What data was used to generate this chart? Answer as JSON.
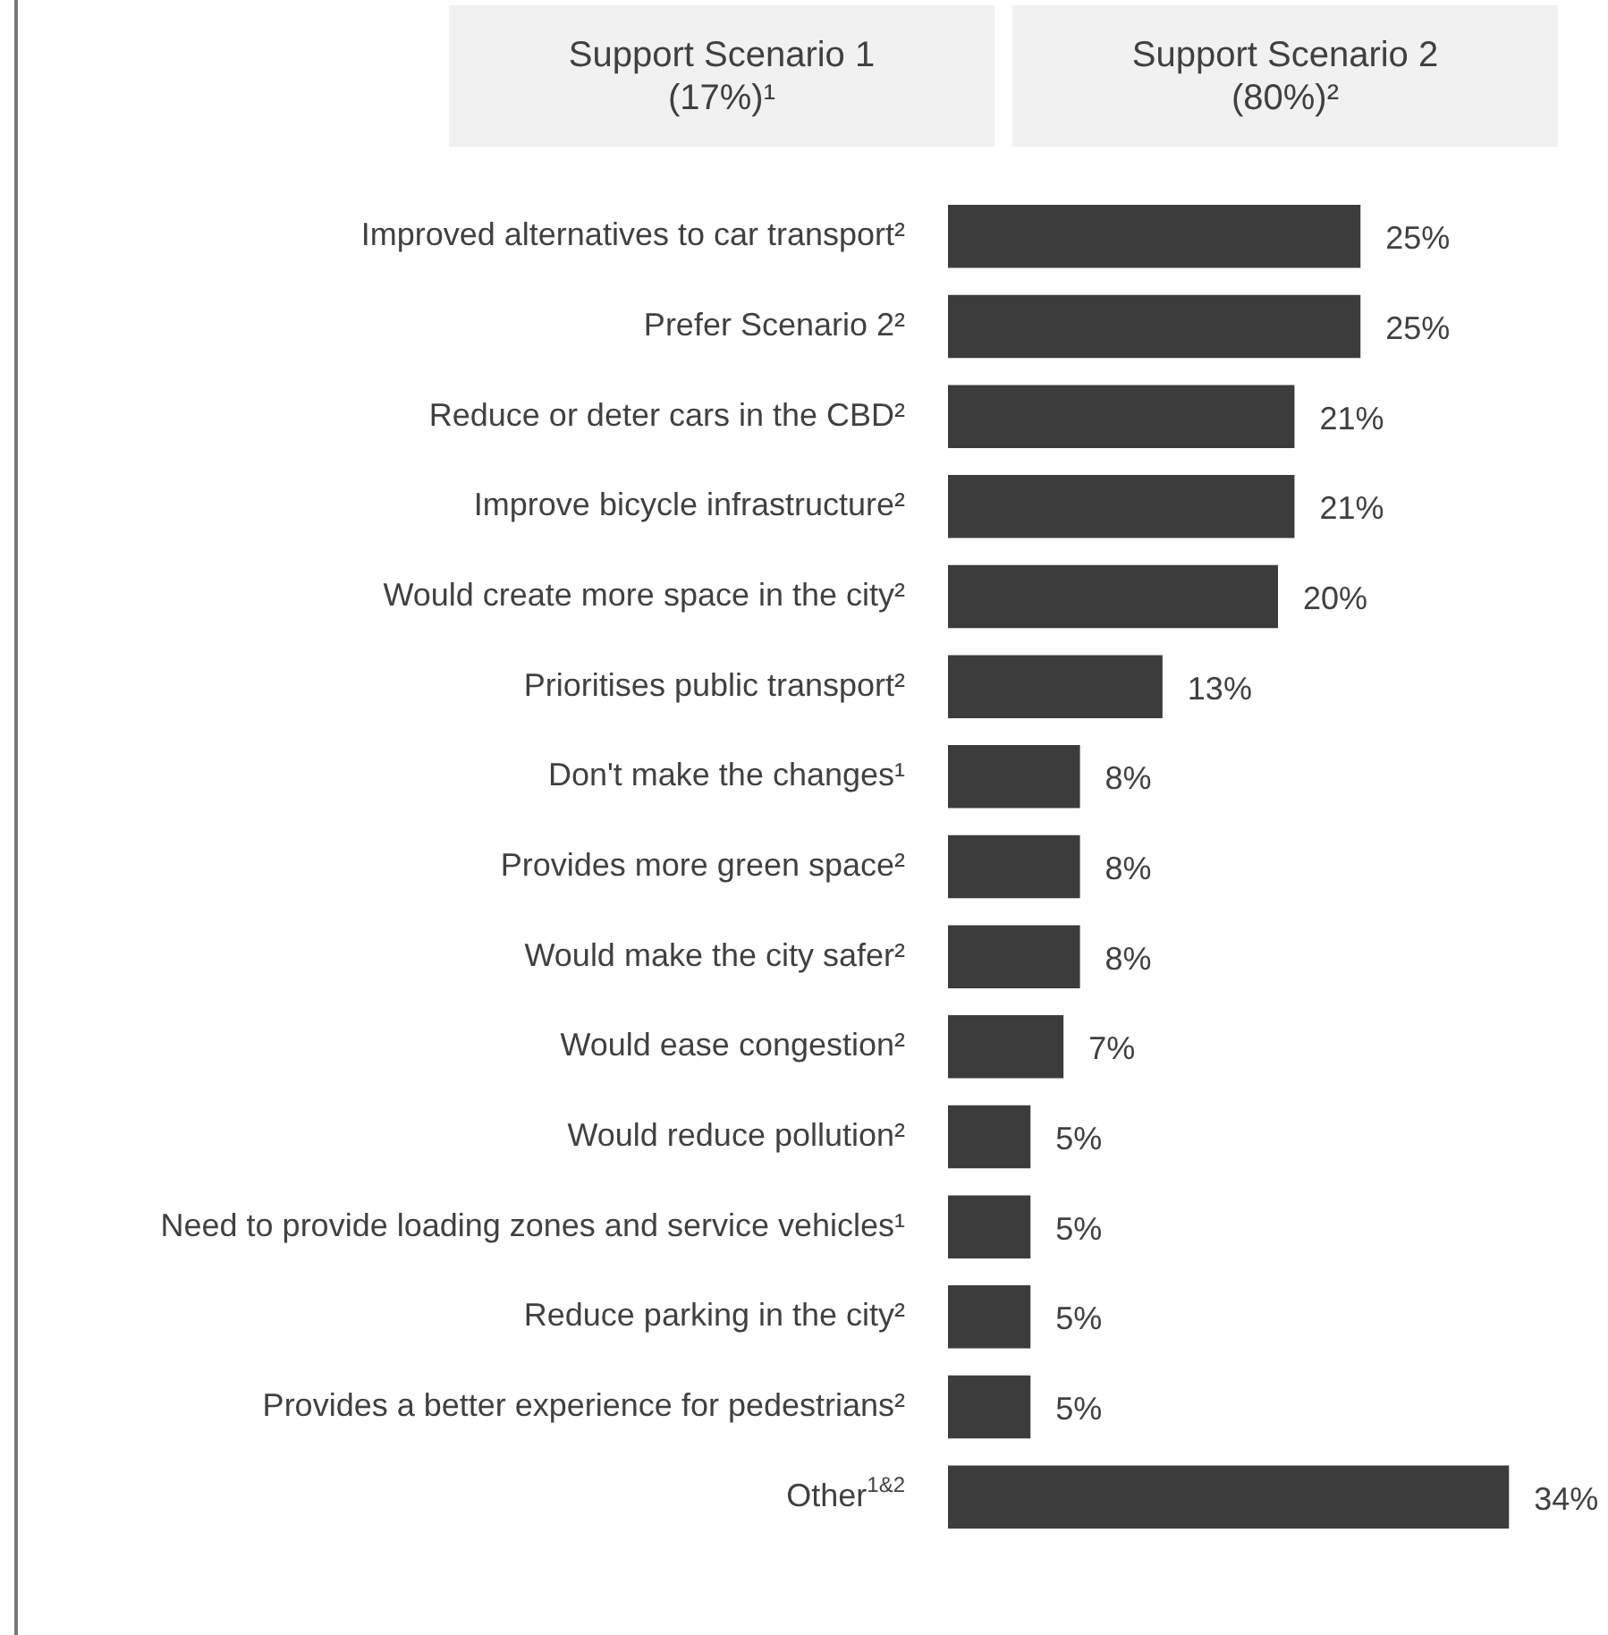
{
  "chart_data": {
    "type": "bar",
    "orientation": "horizontal",
    "annotations": [
      "Support Scenario 1 (17%)¹",
      "Support Scenario 2 (80%)²"
    ],
    "categories": [
      "Improved alternatives to car transport²",
      "Prefer Scenario 2²",
      "Reduce or deter cars in the CBD²",
      "Improve bicycle infrastructure²",
      "Would create more space in the city²",
      "Prioritises public transport²",
      "Don't make the changes¹",
      "Provides more green space²",
      "Would make the city safer²",
      "Would ease congestion²",
      "Would reduce pollution²",
      "Need to provide loading zones and service vehicles¹",
      "Reduce parking in the city²",
      "Provides a better experience for pedestrians²",
      "Other$^{1&2}$"
    ],
    "values": [
      25,
      25,
      21,
      21,
      20,
      13,
      8,
      8,
      8,
      7,
      5,
      5,
      5,
      5,
      34
    ],
    "value_labels": [
      "25%",
      "25%",
      "21%",
      "21%",
      "20%",
      "13%",
      "8%",
      "8%",
      "8%",
      "7%",
      "5%",
      "5%",
      "5%",
      "5%",
      "34%"
    ],
    "color": "#3c3c3c"
  }
}
